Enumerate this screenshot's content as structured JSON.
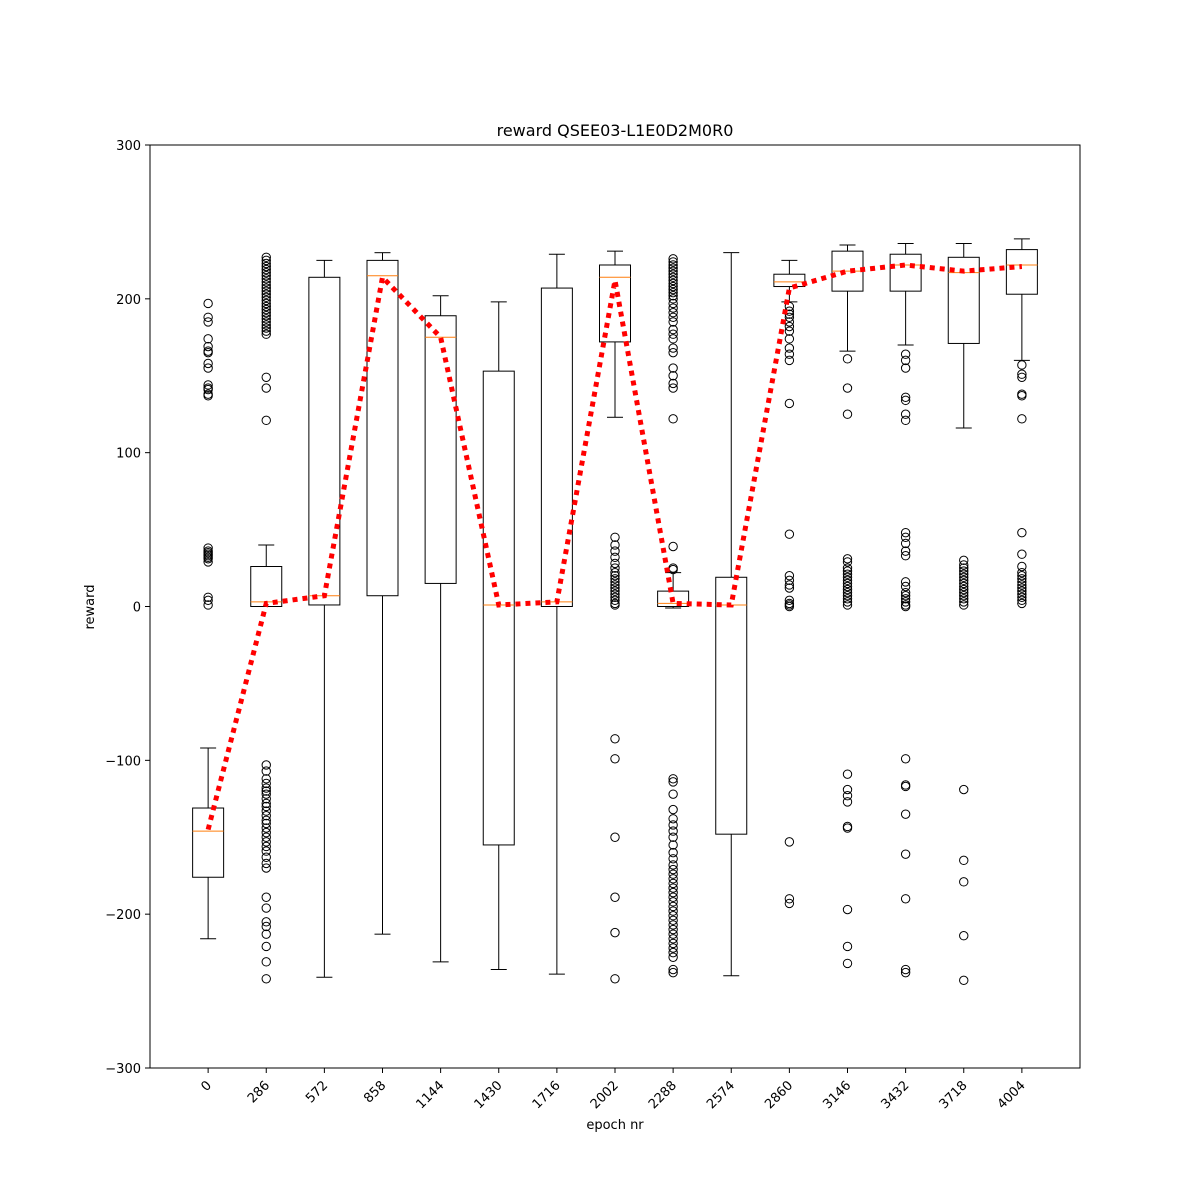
{
  "chart_data": {
    "type": "box",
    "title": "reward QSEE03-L1E0D2M0R0",
    "xlabel": "epoch nr",
    "ylabel": "reward",
    "ylim": [
      -300,
      300
    ],
    "yticks": [
      -300,
      -200,
      -100,
      0,
      100,
      200,
      300
    ],
    "categories": [
      "0",
      "286",
      "572",
      "858",
      "1144",
      "1430",
      "1716",
      "2002",
      "2288",
      "2574",
      "2860",
      "3146",
      "3432",
      "3718",
      "4004"
    ],
    "boxes": [
      {
        "q1": -176,
        "median": -146,
        "q3": -131,
        "whisker_low": -216,
        "whisker_high": -92,
        "outliers": [
          197,
          188,
          185,
          174,
          169,
          166,
          165,
          158,
          155,
          144,
          142,
          141,
          138,
          137,
          38,
          36,
          35,
          34,
          33,
          32,
          31,
          29,
          6,
          4,
          1
        ]
      },
      {
        "q1": 0,
        "median": 3,
        "q3": 26,
        "whisker_low": 0,
        "whisker_high": 40,
        "outliers": [
          227,
          225,
          223,
          221,
          219,
          217,
          215,
          213,
          211,
          209,
          207,
          205,
          203,
          201,
          199,
          197,
          195,
          193,
          191,
          189,
          187,
          185,
          183,
          181,
          179,
          177,
          149,
          142,
          121,
          -103,
          -107,
          -112,
          -115,
          -118,
          -120,
          -122,
          -125,
          -128,
          -130,
          -133,
          -136,
          -139,
          -141,
          -144,
          -147,
          -150,
          -153,
          -156,
          -159,
          -163,
          -167,
          -170,
          -189,
          -196,
          -205,
          -208,
          -213,
          -221,
          -231,
          -242
        ]
      },
      {
        "q1": 1,
        "median": 7,
        "q3": 214,
        "whisker_low": -241,
        "whisker_high": 225,
        "outliers": []
      },
      {
        "q1": 7,
        "median": 215,
        "q3": 225,
        "whisker_low": -213,
        "whisker_high": 230,
        "outliers": []
      },
      {
        "q1": 15,
        "median": 175,
        "q3": 189,
        "whisker_low": -231,
        "whisker_high": 202,
        "outliers": []
      },
      {
        "q1": -155,
        "median": 1,
        "q3": 153,
        "whisker_low": -236,
        "whisker_high": 198,
        "outliers": []
      },
      {
        "q1": 0,
        "median": 3,
        "q3": 207,
        "whisker_low": -239,
        "whisker_high": 229,
        "outliers": []
      },
      {
        "q1": 172,
        "median": 214,
        "q3": 222,
        "whisker_low": 123,
        "whisker_high": 231,
        "outliers": [
          45,
          40,
          36,
          32,
          28,
          25,
          22,
          20,
          18,
          16,
          14,
          12,
          10,
          8,
          6,
          4,
          2,
          1,
          -86,
          -99,
          -150,
          -189,
          -212,
          -242
        ]
      },
      {
        "q1": 0,
        "median": 2,
        "q3": 10,
        "whisker_low": -1,
        "whisker_high": 22,
        "outliers": [
          226,
          224,
          222,
          220,
          218,
          216,
          214,
          212,
          210,
          208,
          206,
          204,
          202,
          200,
          197,
          194,
          191,
          188,
          185,
          180,
          177,
          174,
          168,
          165,
          155,
          150,
          145,
          142,
          122,
          39,
          25,
          24,
          -112,
          -114,
          -122,
          -132,
          -138,
          -142,
          -146,
          -150,
          -155,
          -160,
          -164,
          -168,
          -171,
          -174,
          -177,
          -180,
          -183,
          -186,
          -189,
          -192,
          -195,
          -198,
          -201,
          -204,
          -207,
          -210,
          -213,
          -216,
          -219,
          -222,
          -225,
          -228,
          -236,
          -238
        ]
      },
      {
        "q1": -148,
        "median": 1,
        "q3": 19,
        "whisker_low": -240,
        "whisker_high": 230,
        "outliers": []
      },
      {
        "q1": 208,
        "median": 211,
        "q3": 216,
        "whisker_low": 198,
        "whisker_high": 225,
        "outliers": [
          195,
          192,
          190,
          188,
          185,
          182,
          179,
          174,
          168,
          164,
          160,
          132,
          47,
          20,
          17,
          14,
          12,
          4,
          2,
          1,
          0,
          -153,
          -190,
          -193
        ]
      },
      {
        "q1": 205,
        "median": 218,
        "q3": 231,
        "whisker_low": 166,
        "whisker_high": 235,
        "outliers": [
          161,
          142,
          125,
          31,
          29,
          25,
          23,
          21,
          19,
          17,
          15,
          13,
          11,
          9,
          7,
          5,
          3,
          1,
          -109,
          -119,
          -123,
          -127,
          -143,
          -144,
          -197,
          -221,
          -232
        ]
      },
      {
        "q1": 205,
        "median": 222,
        "q3": 229,
        "whisker_low": 170,
        "whisker_high": 236,
        "outliers": [
          164,
          160,
          155,
          136,
          134,
          125,
          121,
          48,
          45,
          41,
          36,
          33,
          16,
          13,
          9,
          7,
          5,
          3,
          1,
          0,
          -99,
          -116,
          -117,
          -135,
          -161,
          -190,
          -236,
          -238
        ]
      },
      {
        "q1": 171,
        "median": 217,
        "q3": 227,
        "whisker_low": 116,
        "whisker_high": 236,
        "outliers": [
          30,
          27,
          25,
          23,
          21,
          19,
          17,
          15,
          13,
          11,
          9,
          7,
          5,
          3,
          1,
          -119,
          -165,
          -179,
          -214,
          -243
        ]
      },
      {
        "q1": 203,
        "median": 222,
        "q3": 232,
        "whisker_low": 160,
        "whisker_high": 239,
        "outliers": [
          157,
          151,
          149,
          138,
          137,
          122,
          48,
          34,
          26,
          22,
          20,
          18,
          16,
          14,
          12,
          10,
          8,
          6,
          4,
          2
        ]
      }
    ],
    "mean_line": {
      "values": [
        -145,
        2,
        7,
        214,
        175,
        1,
        3,
        212,
        2,
        1,
        207,
        218,
        222,
        218,
        221
      ],
      "color": "#ff0000",
      "style": "dotted"
    },
    "colors": {
      "box": "#000000",
      "median": "#ff7f0e",
      "mean_line": "#ff0000",
      "outlier_edge": "#000000"
    },
    "grid": false,
    "legend": "none",
    "xtick_rotation": -45
  }
}
